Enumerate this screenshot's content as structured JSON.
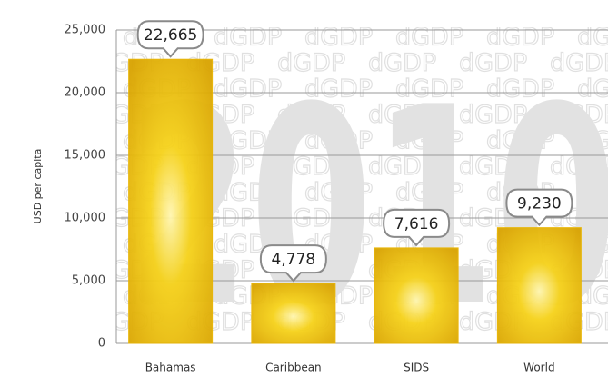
{
  "chart_data": {
    "type": "bar",
    "y_axis_label": "USD per capita",
    "watermark": "2010",
    "background_pattern": "dGDP",
    "categories": [
      "Bahamas",
      "Caribbean",
      "SIDS",
      "World"
    ],
    "values": [
      22665,
      4778,
      7616,
      9230
    ],
    "value_labels": [
      "22,665",
      "4,778",
      "7,616",
      "9,230"
    ],
    "color": "#e8b400",
    "ylim": [
      0,
      25000
    ],
    "yticks": [
      0,
      {
        "value": 5000,
        "label": "5,000"
      },
      {
        "value": 10000,
        "label": "10,000"
      },
      {
        "value": 15000,
        "label": "15,000"
      },
      {
        "value": 20000,
        "label": "20,000"
      },
      {
        "value": 25000,
        "label": "25,000"
      }
    ],
    "grid": true
  }
}
